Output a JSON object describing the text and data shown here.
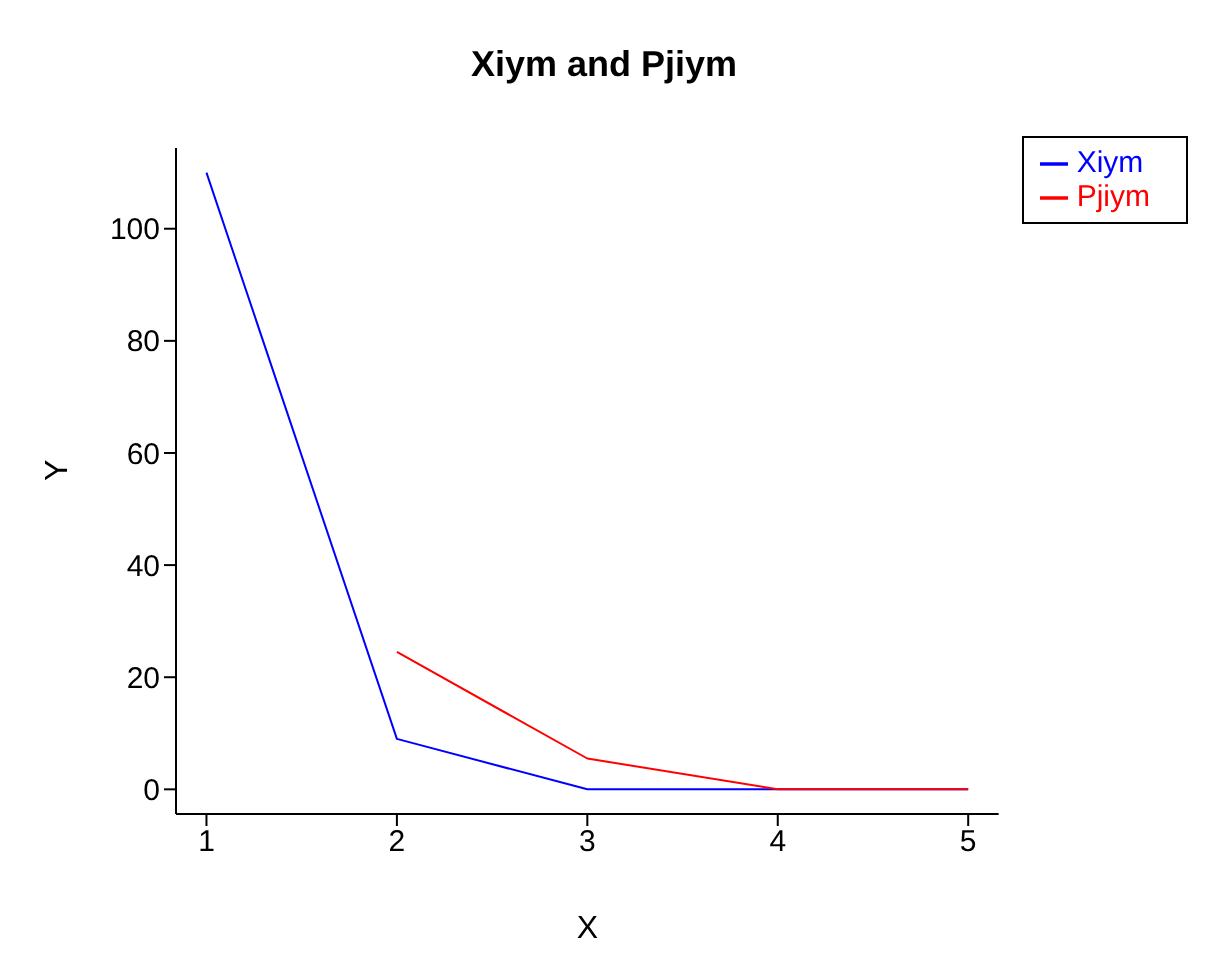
{
  "chart_data": {
    "type": "line",
    "title": "Xiym and Pjiym",
    "xlabel": "X",
    "ylabel": "Y",
    "x": [
      1,
      2,
      3,
      4,
      5
    ],
    "series": [
      {
        "name": "Xiym",
        "color": "#0000ff",
        "values": [
          110,
          9,
          0,
          0,
          0
        ]
      },
      {
        "name": "Pjiym",
        "color": "#ff0000",
        "values": [
          null,
          24.5,
          5.5,
          0,
          0
        ]
      }
    ],
    "xlim": [
      0.84,
      5.16
    ],
    "xticks": [
      1,
      2,
      3,
      4,
      5
    ],
    "ylim": [
      -4.4,
      114.4
    ],
    "yticks": [
      0,
      20,
      40,
      60,
      80,
      100
    ],
    "grid": false,
    "legend": "top right",
    "marker": "none",
    "line_style": "solid"
  }
}
